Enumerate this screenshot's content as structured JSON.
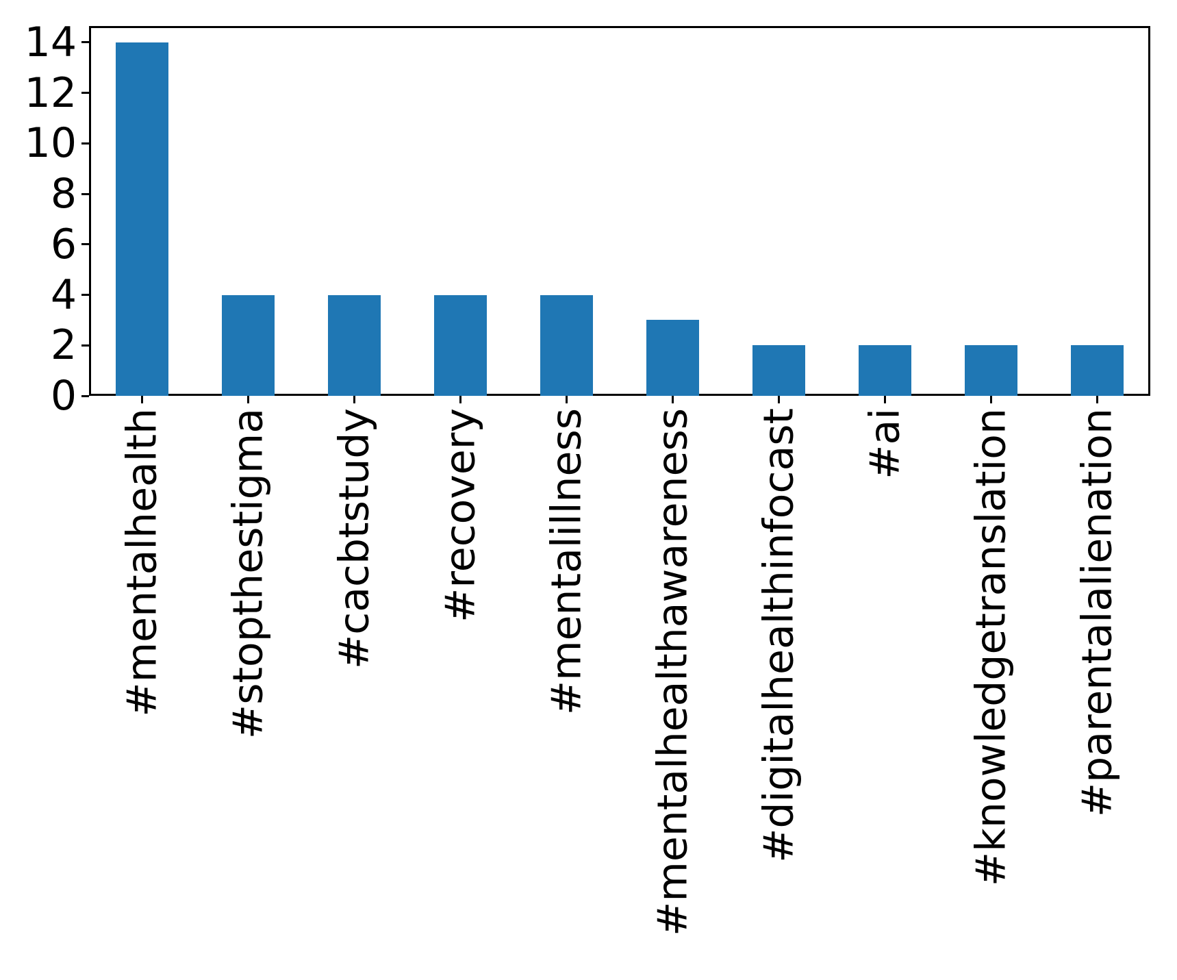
{
  "chart_data": {
    "type": "bar",
    "title": "",
    "xlabel": "",
    "ylabel": "",
    "categories": [
      "#mentalhealth",
      "#stopthestigma",
      "#cacbtstudy",
      "#recovery",
      "#mentalillness",
      "#mentalhealthawareness",
      "#digitalhealthinfocast",
      "#ai",
      "#knowledgetranslation",
      "#parentalalienation"
    ],
    "values": [
      14,
      4,
      4,
      4,
      4,
      3,
      2,
      2,
      2,
      2
    ],
    "yticks": [
      0,
      2,
      4,
      6,
      8,
      10,
      12,
      14
    ],
    "ytick_labels": [
      "0",
      "2",
      "4",
      "6",
      "8",
      "10",
      "12",
      "14"
    ],
    "ylim": [
      0,
      14.65
    ],
    "x_tick_label_rotation": 90,
    "grid": false,
    "legend": null,
    "bar_color": "#1f77b4",
    "axis_color": "#000000",
    "background_color": "#ffffff"
  }
}
